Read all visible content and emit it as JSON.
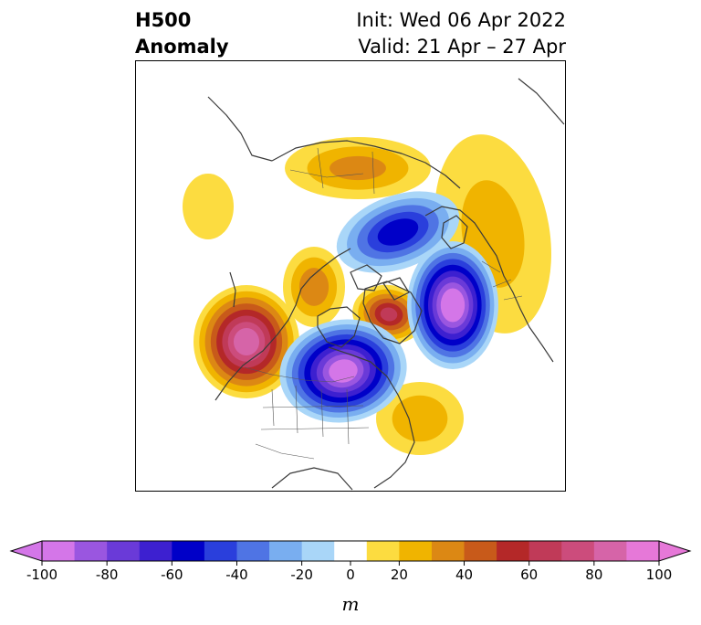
{
  "header": {
    "title_line1": "H500",
    "title_line2": "Anomaly",
    "init_text": "Init: Wed 06 Apr 2022",
    "valid_text": "Valid: 21 Apr – 27 Apr"
  },
  "colorbar": {
    "unit": "m",
    "levels": [
      -100,
      -90,
      -80,
      -70,
      -60,
      -50,
      -40,
      -30,
      -20,
      -10,
      10,
      20,
      30,
      40,
      50,
      60,
      70,
      80,
      90,
      100
    ],
    "tick_labels": [
      "-100",
      "-80",
      "-60",
      "-40",
      "-20",
      "0",
      "20",
      "40",
      "60",
      "80",
      "100"
    ],
    "neg_colors": [
      "#d476e8",
      "#9a56e0",
      "#6a3ad8",
      "#3d20d0",
      "#0000c8",
      "#2a3fdc",
      "#4f74e4",
      "#79aef0",
      "#a9d6f8"
    ],
    "zero_color": "#ffffff",
    "pos_colors": [
      "#fcdc40",
      "#f0b400",
      "#dc8814",
      "#c85a1a",
      "#b42828",
      "#c03a58",
      "#cc4c7c",
      "#d664a8",
      "#e678d8"
    ],
    "under_color": "#d476e8",
    "over_color": "#e678d8"
  },
  "anomalies": [
    {
      "name": "eastern-pacific-ridge",
      "peak_m": 85
    },
    {
      "name": "central-canada-trough",
      "peak_m": -95
    },
    {
      "name": "greenland-ridge",
      "peak_m": 60
    },
    {
      "name": "north-atlantic-trough",
      "peak_m": -100
    },
    {
      "name": "arctic-ocean-trough",
      "peak_m": -55
    },
    {
      "name": "siberian-ridge",
      "peak_m": 30
    },
    {
      "name": "alaska-ridge",
      "peak_m": 35
    },
    {
      "name": "western-atlantic-ridge",
      "peak_m": 25
    },
    {
      "name": "europe-ridge-arc",
      "peak_m": 20
    },
    {
      "name": "western-pacific-ridge",
      "peak_m": 15
    }
  ]
}
